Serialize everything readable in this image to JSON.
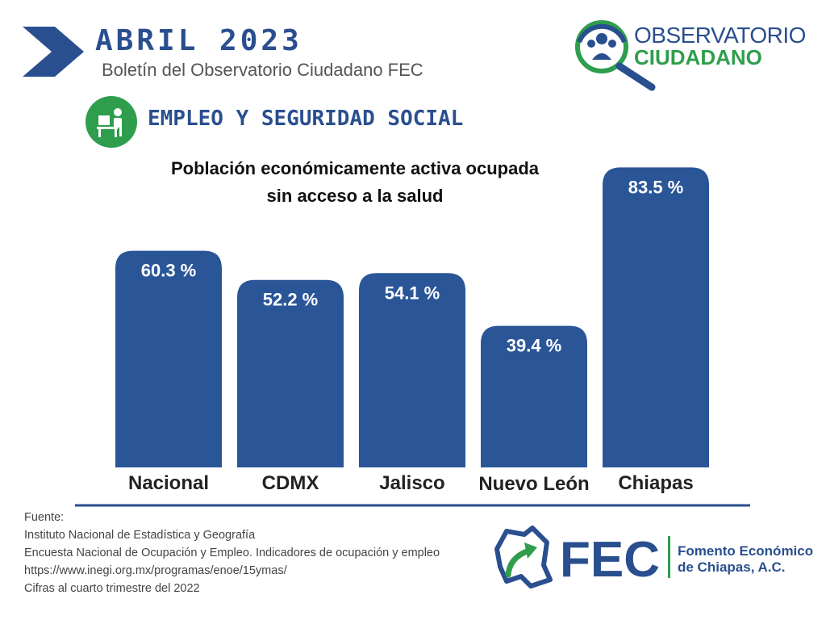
{
  "header": {
    "month": "ABRIL  2023",
    "subtitle": "Boletín del Observatorio Ciudadano FEC",
    "icon": "chevron-right-icon"
  },
  "brand": {
    "obs_line1": "OBSERVATORIO",
    "obs_line2": "CIUDADANO",
    "fec_name": "FEC",
    "fec_full_line1": "Fomento Económico",
    "fec_full_line2": "de Chiapas, A.C.",
    "colors": {
      "blue": "#2a4f8f",
      "green": "#2e9e4c",
      "bar": "#2a5698"
    }
  },
  "section": {
    "title": "EMPLEO Y SEGURIDAD SOCIAL",
    "icon": "office-worker-icon"
  },
  "chart_data": {
    "type": "bar",
    "title_line1": "Población económicamente activa ocupada",
    "title_line2": "sin acceso a la salud",
    "categories": [
      "Nacional",
      "CDMX",
      "Jalisco",
      "Nuevo León",
      "Chiapas"
    ],
    "values": [
      60.3,
      52.2,
      54.1,
      39.4,
      83.5
    ],
    "value_labels": [
      "60.3 %",
      "52.2 %",
      "54.1 %",
      "39.4 %",
      "83.5 %"
    ],
    "unit": "%",
    "xlabel": "",
    "ylabel": "",
    "grid": false,
    "legend": "none"
  },
  "source": {
    "lines": [
      "Fuente:",
      "Instituto Nacional de Estadística y Geografía",
      "Encuesta Nacional de Ocupación y Empleo. Indicadores de ocupación y empleo",
      "https://www.inegi.org.mx/programas/enoe/15ymas/",
      "Cifras al cuarto trimestre del 2022"
    ]
  }
}
